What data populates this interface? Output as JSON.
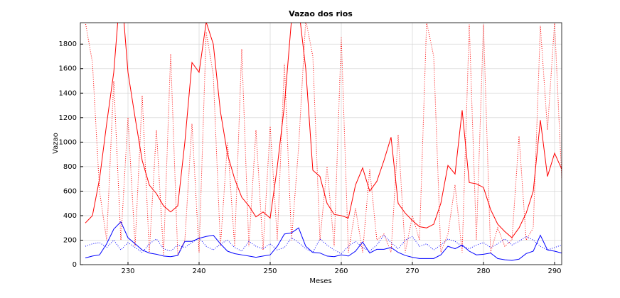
{
  "chart_data": {
    "type": "line",
    "title": "Vazao dos rios",
    "x_label": "Meses",
    "y_label": "Vazao",
    "x": [
      224,
      225,
      226,
      227,
      228,
      229,
      230,
      231,
      232,
      233,
      234,
      235,
      236,
      237,
      238,
      239,
      240,
      241,
      242,
      243,
      244,
      245,
      246,
      247,
      248,
      249,
      250,
      251,
      252,
      253,
      254,
      255,
      256,
      257,
      258,
      259,
      260,
      261,
      262,
      263,
      264,
      265,
      266,
      267,
      268,
      269,
      270,
      271,
      272,
      273,
      274,
      275,
      276,
      277,
      278,
      279,
      280,
      281,
      282,
      283,
      284,
      285,
      286,
      287,
      288,
      289,
      290,
      291
    ],
    "series": [
      {
        "color": "#ff0000",
        "linestyle": "solid",
        "values": [
          340,
          400,
          700,
          1150,
          1570,
          2300,
          1570,
          1200,
          850,
          650,
          580,
          480,
          430,
          480,
          1000,
          1650,
          1570,
          1980,
          1800,
          1250,
          900,
          700,
          550,
          480,
          390,
          430,
          380,
          800,
          1300,
          2000,
          2100,
          1600,
          770,
          720,
          500,
          410,
          400,
          380,
          650,
          790,
          600,
          680,
          850,
          1040,
          500,
          420,
          360,
          310,
          300,
          330,
          500,
          810,
          740,
          1260,
          670,
          660,
          630,
          450,
          330,
          270,
          220,
          300,
          420,
          600,
          1180,
          720,
          910,
          780
        ]
      },
      {
        "color": "#ff0000",
        "linestyle": "dotted",
        "values": [
          1980,
          1650,
          600,
          200,
          1500,
          200,
          1200,
          150,
          1380,
          100,
          1100,
          80,
          1720,
          80,
          200,
          1150,
          100,
          1900,
          1550,
          150,
          1000,
          150,
          1760,
          150,
          1100,
          120,
          1130,
          200,
          1640,
          200,
          960,
          2000,
          1700,
          200,
          800,
          150,
          1860,
          100,
          460,
          100,
          780,
          200,
          250,
          100,
          1060,
          100,
          400,
          200,
          1980,
          1700,
          100,
          250,
          650,
          100,
          1960,
          200,
          1960,
          100,
          300,
          150,
          200,
          1050,
          200,
          300,
          1950,
          1100,
          1980,
          700
        ]
      },
      {
        "color": "#0000ff",
        "linestyle": "solid",
        "values": [
          55,
          70,
          80,
          170,
          290,
          350,
          220,
          170,
          120,
          95,
          85,
          70,
          65,
          75,
          190,
          190,
          215,
          230,
          240,
          170,
          110,
          90,
          80,
          70,
          60,
          70,
          80,
          150,
          250,
          260,
          300,
          150,
          100,
          95,
          70,
          65,
          80,
          70,
          110,
          185,
          95,
          125,
          125,
          140,
          100,
          75,
          60,
          50,
          50,
          50,
          80,
          150,
          130,
          160,
          110,
          80,
          85,
          95,
          50,
          40,
          35,
          45,
          90,
          110,
          240,
          120,
          110,
          95
        ]
      },
      {
        "color": "#0000ff",
        "linestyle": "dotted",
        "values": [
          150,
          170,
          180,
          140,
          200,
          120,
          180,
          140,
          100,
          170,
          210,
          130,
          110,
          160,
          140,
          180,
          220,
          150,
          120,
          170,
          200,
          140,
          110,
          190,
          150,
          130,
          170,
          120,
          140,
          220,
          180,
          130,
          100,
          210,
          160,
          120,
          90,
          150,
          190,
          140,
          110,
          160,
          240,
          180,
          130,
          200,
          230,
          150,
          170,
          120,
          160,
          210,
          190,
          150,
          130,
          160,
          180,
          140,
          170,
          210,
          160,
          190,
          230,
          200,
          150,
          120,
          140,
          160
        ]
      }
    ],
    "xlim": [
      223.3,
      291
    ],
    "ylim": [
      0,
      1975
    ],
    "xticks": [
      230,
      240,
      250,
      260,
      270,
      280,
      290
    ],
    "yticks": [
      0,
      200,
      400,
      600,
      800,
      1000,
      1200,
      1400,
      1600,
      1800
    ],
    "grid": true
  }
}
